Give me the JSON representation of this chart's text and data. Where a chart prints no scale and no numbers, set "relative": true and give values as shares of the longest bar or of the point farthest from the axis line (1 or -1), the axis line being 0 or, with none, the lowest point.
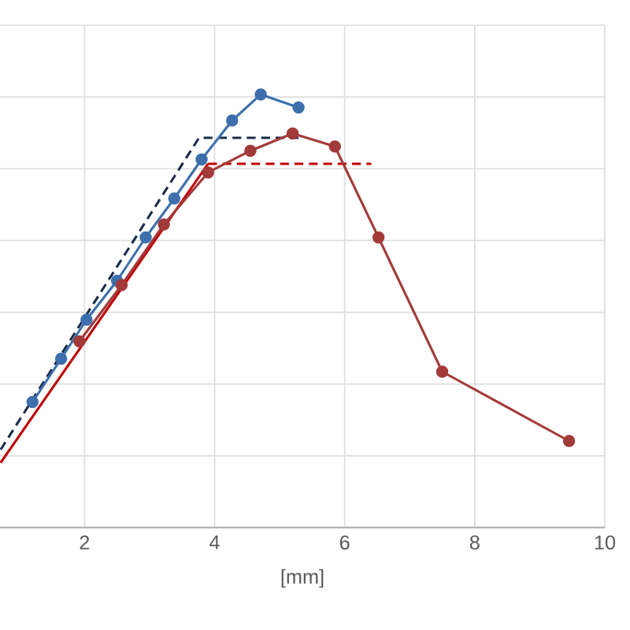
{
  "chart_data": {
    "type": "line",
    "relative": true,
    "xlabel": "[mm]",
    "xlim": [
      0.7,
      10
    ],
    "xticks": [
      2,
      4,
      6,
      8,
      10
    ],
    "grid": true,
    "marker": "circle",
    "tick_labels": "x",
    "series": [
      {
        "color": "#1f2d4a",
        "line_style": "dashed",
        "marker": "none",
        "x": [
          0.71,
          3.76,
          5.29
        ],
        "values": [
          0.18,
          0.9,
          0.9
        ]
      },
      {
        "color": "#c00000",
        "line_style": "solid",
        "marker": "none",
        "x": [
          0.71,
          3.9
        ],
        "values": [
          0.15,
          0.84
        ]
      },
      {
        "color": "#c00000",
        "line_style": "dashed",
        "marker": "none",
        "x": [
          3.9,
          6.41
        ],
        "values": [
          0.84,
          0.84
        ]
      },
      {
        "color": "#3e6fad",
        "x": [
          1.2,
          1.64,
          2.03,
          2.5,
          2.94,
          3.38,
          3.8,
          4.27,
          4.71,
          5.29
        ],
        "values": [
          0.29,
          0.39,
          0.48,
          0.57,
          0.67,
          0.76,
          0.85,
          0.94,
          1.0,
          0.97
        ]
      },
      {
        "color": "#a33a3a",
        "x": [
          1.92,
          2.57,
          3.22,
          3.9,
          4.55,
          5.2,
          5.85,
          6.52,
          7.5,
          9.45
        ],
        "values": [
          0.43,
          0.56,
          0.7,
          0.82,
          0.87,
          0.91,
          0.88,
          0.67,
          0.36,
          0.2
        ]
      }
    ]
  }
}
